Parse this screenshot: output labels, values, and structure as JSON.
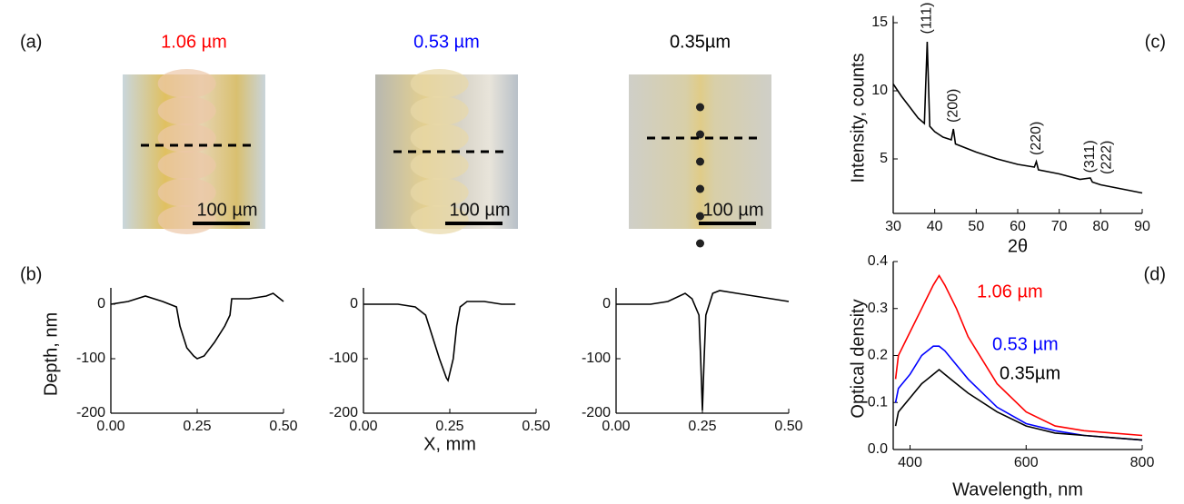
{
  "panel_labels": [
    "(a)",
    "(b)",
    "(c)",
    "(d)"
  ],
  "images": [
    {
      "title": "1.06 µm",
      "color": "#ff0000",
      "scale_bar": "100 µm"
    },
    {
      "title": "0.53 µm",
      "color": "#0000ff",
      "scale_bar": "100 µm"
    },
    {
      "title": "0.35µm",
      "color": "#000000",
      "scale_bar": "100 µm"
    }
  ],
  "chart_data": [
    {
      "type": "line",
      "y_label": "Depth, nm",
      "color": "#000000",
      "x": [
        0,
        0.05,
        0.1,
        0.15,
        0.19,
        0.2,
        0.22,
        0.24,
        0.25,
        0.27,
        0.3,
        0.33,
        0.345,
        0.35,
        0.4,
        0.45,
        0.47,
        0.5
      ],
      "values": [
        0,
        5,
        15,
        5,
        -5,
        -40,
        -80,
        -95,
        -100,
        -95,
        -70,
        -40,
        -20,
        10,
        10,
        15,
        20,
        5
      ],
      "xlim": [
        0,
        0.5
      ],
      "xticks": [
        {
          "value": 0,
          "label": "0.00"
        },
        {
          "value": 0.25,
          "label": "0.25"
        },
        {
          "value": 0.5,
          "label": "0.50"
        }
      ],
      "ylim": [
        -200,
        30
      ],
      "yticks": [
        -200,
        -100,
        0
      ]
    },
    {
      "type": "line",
      "x_label": "X, mm",
      "color": "#000000",
      "x": [
        0,
        0.1,
        0.15,
        0.18,
        0.2,
        0.22,
        0.24,
        0.245,
        0.26,
        0.27,
        0.28,
        0.3,
        0.35,
        0.4,
        0.44
      ],
      "values": [
        0,
        0,
        -5,
        -20,
        -60,
        -100,
        -135,
        -140,
        -100,
        -40,
        -5,
        5,
        5,
        0,
        0
      ],
      "xlim": [
        0,
        0.5
      ],
      "xticks": [
        {
          "value": 0,
          "label": "0.00"
        },
        {
          "value": 0.25,
          "label": "0.25"
        },
        {
          "value": 0.5,
          "label": "0.50"
        }
      ],
      "ylim": [
        -200,
        30
      ],
      "yticks": [
        -200,
        -100,
        0
      ]
    },
    {
      "type": "line",
      "color": "#000000",
      "x": [
        0,
        0.1,
        0.15,
        0.2,
        0.22,
        0.24,
        0.245,
        0.25,
        0.255,
        0.26,
        0.28,
        0.3,
        0.35,
        0.4,
        0.45,
        0.5
      ],
      "values": [
        0,
        0,
        5,
        20,
        10,
        -20,
        -100,
        -195,
        -100,
        -20,
        20,
        25,
        20,
        15,
        10,
        5
      ],
      "xlim": [
        0,
        0.5
      ],
      "xticks": [
        {
          "value": 0,
          "label": "0.00"
        },
        {
          "value": 0.25,
          "label": "0.25"
        },
        {
          "value": 0.5,
          "label": "0.50"
        }
      ],
      "ylim": [
        -200,
        30
      ],
      "yticks": [
        -200,
        -100,
        0
      ]
    },
    {
      "type": "line",
      "x_label": "2θ",
      "y_label": "Intensity, counts",
      "color": "#000000",
      "x": [
        30,
        32,
        34,
        36,
        37.5,
        38.2,
        38.8,
        40,
        42,
        44,
        44.5,
        45,
        50,
        55,
        60,
        64,
        64.5,
        65,
        70,
        75,
        77.5,
        78,
        80,
        85,
        90
      ],
      "values": [
        10.5,
        9.6,
        8.8,
        8.0,
        7.6,
        13.6,
        7.4,
        7.0,
        6.6,
        6.4,
        7.2,
        6.1,
        5.5,
        5.0,
        4.6,
        4.4,
        4.8,
        4.2,
        3.9,
        3.5,
        3.6,
        3.3,
        3.1,
        2.8,
        2.5
      ],
      "annotations": [
        "(111)",
        "(200)",
        "(220)",
        "(311)",
        "(222)"
      ],
      "xlim": [
        30,
        90
      ],
      "xticks": [
        30,
        40,
        50,
        60,
        70,
        80,
        90
      ],
      "ylim": [
        1,
        15.5
      ],
      "yticks": [
        5,
        10,
        15
      ]
    },
    {
      "type": "line",
      "x_label": "Wavelength, nm",
      "y_label": "Optical density",
      "x": [
        375,
        380,
        400,
        420,
        440,
        450,
        460,
        480,
        500,
        550,
        600,
        650,
        700,
        750,
        800
      ],
      "series": [
        {
          "name": "1.06 µm",
          "color": "#ff0000",
          "values": [
            0.15,
            0.2,
            0.25,
            0.3,
            0.35,
            0.37,
            0.35,
            0.3,
            0.24,
            0.14,
            0.08,
            0.05,
            0.04,
            0.035,
            0.03
          ]
        },
        {
          "name": "0.53 µm",
          "color": "#0000ff",
          "values": [
            0.1,
            0.13,
            0.16,
            0.2,
            0.22,
            0.22,
            0.21,
            0.18,
            0.15,
            0.09,
            0.055,
            0.04,
            0.03,
            0.025,
            0.02
          ]
        },
        {
          "name": "0.35µm",
          "color": "#000000",
          "values": [
            0.05,
            0.08,
            0.11,
            0.14,
            0.16,
            0.17,
            0.16,
            0.14,
            0.12,
            0.08,
            0.05,
            0.035,
            0.03,
            0.025,
            0.02
          ]
        }
      ],
      "xlim": [
        371,
        800
      ],
      "xticks": [
        400,
        600,
        800
      ],
      "ylim": [
        0,
        0.4
      ],
      "yticks": [
        {
          "value": 0,
          "label": "0.0"
        },
        0.1,
        0.2,
        0.3,
        0.4
      ]
    }
  ]
}
